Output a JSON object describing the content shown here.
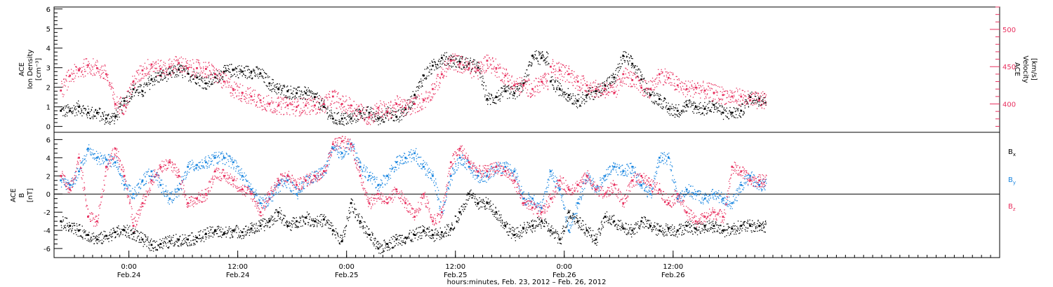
{
  "chart_data": [
    {
      "type": "scatter",
      "panel": "top",
      "ylabel_lines": [
        "ACE",
        "Ion Density",
        "[cm⁻³]"
      ],
      "ylim": [
        -0.3,
        6.1
      ],
      "yticks": [
        0,
        1,
        2,
        3,
        4,
        5,
        6
      ],
      "y2label_lines": [
        "ACE",
        "Velocity",
        "[km/s]"
      ],
      "y2lim": [
        362,
        530
      ],
      "y2ticks": [
        400,
        450,
        500
      ],
      "grid": false,
      "series": [
        {
          "name": "",
          "axis": "left",
          "color": "#000000",
          "x": [
            0,
            2,
            4,
            6,
            8,
            10,
            12,
            14,
            16,
            18,
            20,
            22,
            24,
            26,
            28,
            30,
            32,
            34,
            36,
            38,
            40,
            42,
            44,
            46,
            48,
            50,
            52,
            54,
            56,
            58,
            60,
            62,
            64,
            66,
            68,
            70,
            72,
            74,
            76,
            78,
            80,
            82,
            84,
            86,
            88,
            90,
            92,
            94,
            96,
            98,
            100,
            102,
            104,
            106
          ],
          "y": [
            0.8,
            0.8,
            1.0,
            0.7,
            0.7,
            0.4,
            0.5,
            1.3,
            1.9,
            1.8,
            2.4,
            2.6,
            2.7,
            2.9,
            2.7,
            2.5,
            2.2,
            2.5,
            2.8,
            2.9,
            2.8,
            2.8,
            2.7,
            2.2,
            1.9,
            1.8,
            1.7,
            1.7,
            1.5,
            1.0,
            0.4,
            0.4,
            0.4,
            0.7,
            0.7,
            0.4,
            0.7,
            0.5,
            0.9,
            1.6,
            2.6,
            3.1,
            3.5,
            3.4,
            3.3,
            3.2,
            3.0,
            1.4,
            1.5,
            1.8,
            1.7,
            2.2,
            3.6,
            3.5
          ]
        },
        {
          "name": "",
          "axis": "right",
          "color": "#e8305f",
          "x": [
            0,
            2,
            4,
            6,
            8,
            10,
            12,
            14,
            16,
            18,
            20,
            22,
            24,
            26,
            28,
            30,
            32,
            34,
            36,
            38,
            40,
            42,
            44,
            46,
            48,
            50,
            52,
            54,
            56,
            58,
            60,
            62,
            64,
            66,
            68,
            70,
            72,
            74,
            76,
            78,
            80,
            82,
            84,
            86,
            88,
            90,
            92,
            94,
            96,
            98,
            100,
            102,
            104,
            106
          ],
          "y": [
            418,
            438,
            445,
            452,
            448,
            440,
            400,
            398,
            430,
            445,
            453,
            447,
            450,
            455,
            448,
            448,
            447,
            440,
            430,
            420,
            415,
            410,
            405,
            400,
            398,
            398,
            396,
            398,
            398,
            400,
            410,
            400,
            398,
            390,
            382,
            395,
            390,
            400,
            395,
            400,
            405,
            420,
            440,
            458,
            454,
            448,
            445,
            458,
            448,
            438,
            425,
            425,
            420,
            430
          ]
        },
        {
          "name": "",
          "axis": "left",
          "color": "#000000",
          "x": [
            108,
            110,
            112,
            114,
            116,
            118,
            120,
            122,
            124,
            126,
            128,
            130,
            132,
            134,
            136,
            138,
            140,
            142,
            144,
            146,
            148,
            150,
            152,
            154
          ],
          "y": [
            2.3,
            1.9,
            1.6,
            1.3,
            1.6,
            1.8,
            2.1,
            2.5,
            3.6,
            3.2,
            2.4,
            1.6,
            1.4,
            0.9,
            0.8,
            1.1,
            1.0,
            0.9,
            1.1,
            0.7,
            0.7,
            0.8,
            1.5,
            1.4
          ]
        },
        {
          "name": "",
          "axis": "right",
          "color": "#e8305f",
          "x": [
            108,
            110,
            112,
            114,
            116,
            118,
            120,
            122,
            124,
            126,
            128,
            130,
            132,
            134,
            136,
            138,
            140,
            142,
            144,
            146,
            148,
            150,
            152,
            154
          ],
          "y": [
            450,
            445,
            440,
            430,
            425,
            420,
            420,
            415,
            440,
            432,
            422,
            420,
            440,
            435,
            425,
            420,
            422,
            418,
            415,
            412,
            410,
            410,
            405,
            405
          ]
        }
      ]
    },
    {
      "type": "scatter",
      "panel": "bottom",
      "ylabel_lines": [
        "ACE",
        "B",
        "[nT]"
      ],
      "ylim": [
        -7.0,
        6.8
      ],
      "yticks": [
        -6,
        -4,
        -2,
        0,
        2,
        4,
        6
      ],
      "xlabel": "hours:minutes, Feb. 23, 2012 – Feb. 26, 2012",
      "xlim": [
        -1.5,
        207
      ],
      "xticks": [
        {
          "x": 15,
          "label": "0:00",
          "sublabel": "Feb.24"
        },
        {
          "x": 39,
          "label": "12:00",
          "sublabel": "Feb.24"
        },
        {
          "x": 63,
          "label": "0:00",
          "sublabel": "Feb.25"
        },
        {
          "x": 87,
          "label": "12:00",
          "sublabel": "Feb.25"
        },
        {
          "x": 111,
          "label": "0:00",
          "sublabel": "Feb.26"
        },
        {
          "x": 135,
          "label": "12:00",
          "sublabel": "Feb.26"
        }
      ],
      "legend_placement": "right",
      "zero_line": true,
      "grid": false,
      "series": [
        {
          "name": "B",
          "sub": "x",
          "color": "#000000",
          "x": [
            0,
            2,
            4,
            6,
            8,
            10,
            12,
            14,
            16,
            18,
            20,
            22,
            24,
            26,
            28,
            30,
            32,
            34,
            36,
            38,
            40,
            42,
            44,
            46,
            48,
            50,
            52,
            54,
            56,
            58,
            60,
            62,
            64,
            66,
            68,
            70,
            72,
            74,
            76,
            78,
            80,
            82,
            84,
            86,
            88,
            90,
            92,
            94,
            96,
            98,
            100,
            102,
            104,
            106,
            108,
            110,
            112,
            114,
            116,
            118,
            120,
            122,
            124,
            126,
            128,
            130,
            132,
            134,
            136,
            138,
            140,
            142,
            144,
            146,
            148,
            150,
            152,
            154
          ],
          "y": [
            -3.0,
            -3.5,
            -4.0,
            -4.5,
            -5.0,
            -4.6,
            -4.2,
            -4.0,
            -4.3,
            -5.0,
            -5.6,
            -5.5,
            -5.2,
            -5.0,
            -5.0,
            -4.8,
            -4.4,
            -4.0,
            -4.3,
            -4.0,
            -4.2,
            -3.8,
            -3.5,
            -3.0,
            -2.0,
            -3.5,
            -3.0,
            -2.6,
            -3.0,
            -2.8,
            -4.0,
            -5.2,
            -1.0,
            -3.0,
            -4.5,
            -6.0,
            -5.5,
            -5.0,
            -4.8,
            -4.5,
            -4.0,
            -4.5,
            -4.2,
            -3.8,
            -2.0,
            0.0,
            -1.0,
            -1.0,
            -2.0,
            -3.5,
            -4.5,
            -3.8,
            -3.5,
            -3.0,
            -4.0,
            -5.0,
            -2.0,
            -3.0,
            -4.0,
            -5.0,
            -2.5,
            -3.0,
            -3.8,
            -4.0,
            -3.0,
            -3.5,
            -4.0,
            -3.8,
            -4.0,
            -3.5,
            -3.8,
            -3.5,
            -3.5,
            -4.0,
            -3.8,
            -3.5,
            -3.5,
            -3.5
          ]
        },
        {
          "name": "B",
          "sub": "y",
          "color": "#1a86e0",
          "x": [
            0,
            2,
            4,
            6,
            8,
            10,
            12,
            14,
            16,
            18,
            20,
            22,
            24,
            26,
            28,
            30,
            32,
            34,
            36,
            38,
            40,
            42,
            44,
            46,
            48,
            50,
            52,
            54,
            56,
            58,
            60,
            62,
            64,
            66,
            68,
            70,
            72,
            74,
            76,
            78,
            80,
            82,
            84,
            86,
            88,
            90,
            92,
            94,
            96,
            98,
            100,
            102,
            104,
            106,
            108,
            110,
            112,
            114,
            116,
            118,
            120,
            122,
            124,
            126,
            128,
            130,
            132,
            134,
            136,
            138,
            140,
            142,
            144,
            146,
            148,
            150,
            152,
            154
          ],
          "y": [
            1.5,
            1.0,
            2.5,
            5.0,
            4.0,
            3.8,
            3.5,
            1.0,
            0.0,
            1.5,
            2.5,
            1.0,
            -0.5,
            0.5,
            3.0,
            3.2,
            3.5,
            4.0,
            4.0,
            3.5,
            2.0,
            0.5,
            -1.0,
            -0.5,
            1.0,
            1.5,
            0.0,
            1.5,
            2.0,
            2.5,
            5.0,
            4.5,
            5.5,
            3.0,
            2.0,
            1.0,
            2.0,
            3.5,
            4.0,
            4.5,
            3.0,
            2.0,
            -2.0,
            2.0,
            4.0,
            3.0,
            2.0,
            2.0,
            3.0,
            3.0,
            2.5,
            -0.5,
            -0.5,
            -1.5,
            2.5,
            0.5,
            -4.0,
            -1.0,
            2.0,
            0.5,
            2.0,
            3.0,
            2.5,
            3.0,
            1.0,
            0.0,
            4.0,
            4.0,
            -0.5,
            0.5,
            0.0,
            -0.5,
            0.0,
            -0.5,
            -1.0,
            1.0,
            2.0,
            1.0
          ]
        },
        {
          "name": "B",
          "sub": "z",
          "color": "#e8305f",
          "x": [
            0,
            2,
            4,
            6,
            8,
            10,
            12,
            14,
            16,
            18,
            20,
            22,
            24,
            26,
            28,
            30,
            32,
            34,
            36,
            38,
            40,
            42,
            44,
            46,
            48,
            50,
            52,
            54,
            56,
            58,
            60,
            62,
            64,
            66,
            68,
            70,
            72,
            74,
            76,
            78,
            80,
            82,
            84,
            86,
            88,
            90,
            92,
            94,
            96,
            98,
            100,
            102,
            104,
            106,
            108,
            110,
            112,
            114,
            116,
            118,
            120,
            122,
            124,
            126,
            128,
            130,
            132,
            134,
            136,
            138,
            140,
            142,
            144,
            146,
            148,
            150,
            152,
            154
          ],
          "y": [
            2.0,
            0.5,
            4.0,
            -2.5,
            -3.0,
            3.0,
            5.0,
            2.0,
            -3.5,
            -1.0,
            1.5,
            3.0,
            3.5,
            2.0,
            -1.0,
            -0.5,
            0.0,
            2.5,
            2.0,
            1.5,
            0.5,
            0.0,
            -2.0,
            0.0,
            1.5,
            2.0,
            1.0,
            1.5,
            2.0,
            2.5,
            5.5,
            5.8,
            5.5,
            2.0,
            -1.0,
            0.0,
            -1.0,
            0.5,
            -1.0,
            -2.5,
            0.0,
            -3.0,
            -2.0,
            3.5,
            5.0,
            3.5,
            2.5,
            2.5,
            3.0,
            2.5,
            1.5,
            -1.0,
            -1.5,
            -2.0,
            -0.5,
            1.5,
            0.5,
            1.0,
            2.0,
            0.5,
            0.0,
            1.0,
            -1.0,
            1.5,
            2.0,
            1.0,
            0.5,
            -1.0,
            0.0,
            -2.0,
            -3.0,
            -2.5,
            -2.0,
            -2.5,
            3.0,
            2.5,
            1.5,
            1.5
          ]
        }
      ]
    }
  ]
}
